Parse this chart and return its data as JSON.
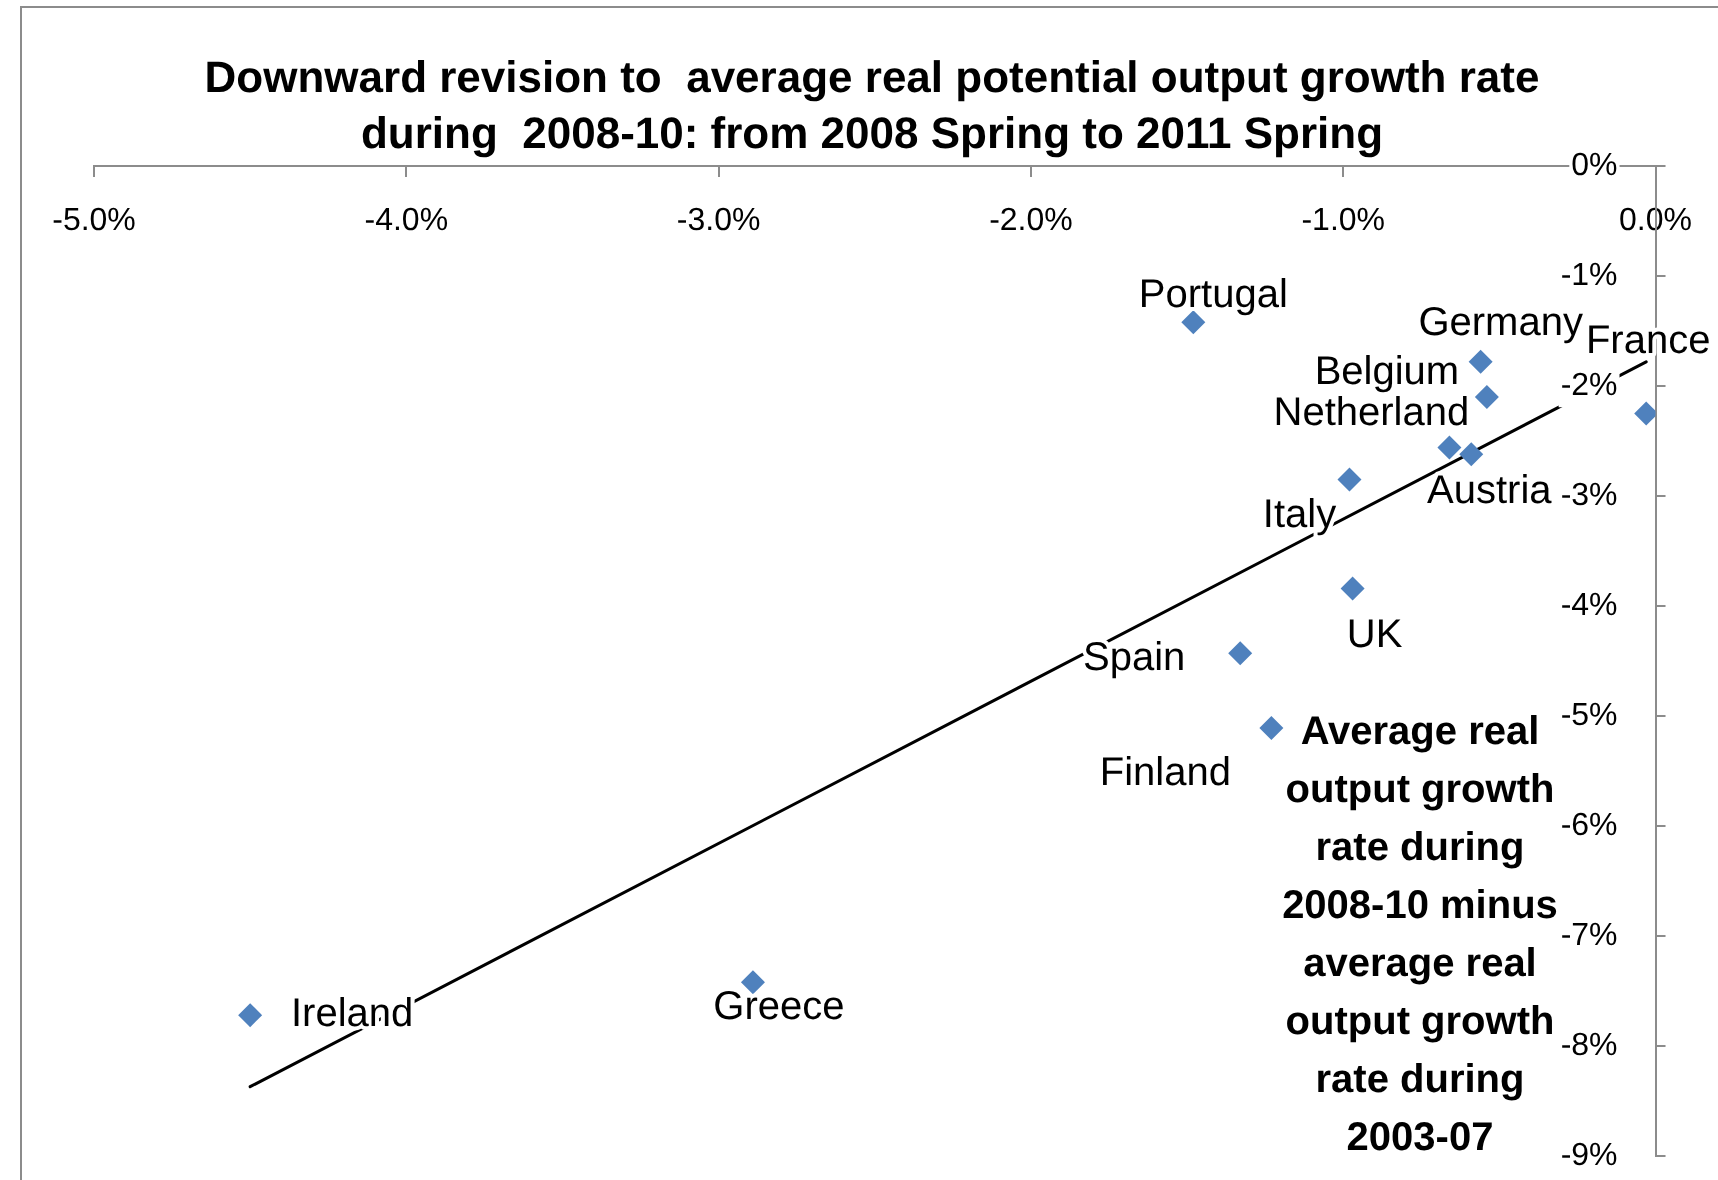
{
  "chart_data": {
    "type": "scatter",
    "title": "Downward revision to  average real potential output growth rate during  2008-10: from 2008 Spring to 2011 Spring",
    "ylabel": "Average real output growth rate during 2008-10 minus average real output growth rate during 2003-07",
    "xlim": [
      -5,
      0
    ],
    "xticks": [
      {
        "value": -5,
        "label": "-5.0%"
      },
      {
        "value": -4,
        "label": "-4.0%"
      },
      {
        "value": -3,
        "label": "-3.0%"
      },
      {
        "value": -2,
        "label": "-2.0%"
      },
      {
        "value": -1,
        "label": "-1.0%"
      },
      {
        "value": 0,
        "label": "0.0%"
      }
    ],
    "ylim": [
      -9,
      0
    ],
    "yticks": [
      {
        "value": -9,
        "label": "-9%"
      },
      {
        "value": -8,
        "label": "-8%"
      },
      {
        "value": -7,
        "label": "-7%"
      },
      {
        "value": -6,
        "label": "-6%"
      },
      {
        "value": -5,
        "label": "-5%"
      },
      {
        "value": -4,
        "label": "-4%"
      },
      {
        "value": -3,
        "label": "-3%"
      },
      {
        "value": -2,
        "label": "-2%"
      },
      {
        "value": -1,
        "label": "-1%"
      },
      {
        "value": 0,
        "label": "0%"
      }
    ],
    "marker": "diamond",
    "grid": false,
    "legend": false,
    "series": [
      {
        "name": "Portugal",
        "color": "#4f81bd",
        "x": [
          -1.48
        ],
        "values": [
          -1.42
        ]
      },
      {
        "name": "Germany",
        "color": "#4f81bd",
        "x": [
          -0.56
        ],
        "values": [
          -1.78
        ]
      },
      {
        "name": "Belgium",
        "color": "#4f81bd",
        "x": [
          -0.54
        ],
        "values": [
          -2.1
        ]
      },
      {
        "name": "France",
        "color": "#4f81bd",
        "x": [
          -0.03
        ],
        "values": [
          -2.25
        ]
      },
      {
        "name": "Netherland",
        "color": "#4f81bd",
        "x": [
          -0.66
        ],
        "values": [
          -2.56
        ]
      },
      {
        "name": "Austria",
        "color": "#4f81bd",
        "x": [
          -0.59
        ],
        "values": [
          -2.62
        ]
      },
      {
        "name": "Italy",
        "color": "#4f81bd",
        "x": [
          -0.98
        ],
        "values": [
          -2.85
        ]
      },
      {
        "name": "UK",
        "color": "#4f81bd",
        "x": [
          -0.97
        ],
        "values": [
          -3.84
        ]
      },
      {
        "name": "Spain",
        "color": "#4f81bd",
        "x": [
          -1.33
        ],
        "values": [
          -4.43
        ]
      },
      {
        "name": "Finland",
        "color": "#4f81bd",
        "x": [
          -1.23
        ],
        "values": [
          -5.11
        ]
      },
      {
        "name": "Ireland",
        "color": "#4f81bd",
        "x": [
          -4.5
        ],
        "values": [
          -7.72
        ]
      },
      {
        "name": "Greece",
        "color": "#4f81bd",
        "x": [
          -2.89
        ],
        "values": [
          -7.42
        ]
      },
      {
        "type": "line",
        "color": "#000000",
        "marker": "none",
        "x": [
          -4.5,
          -0.03
        ],
        "values": [
          -8.37,
          -1.78
        ]
      }
    ]
  }
}
